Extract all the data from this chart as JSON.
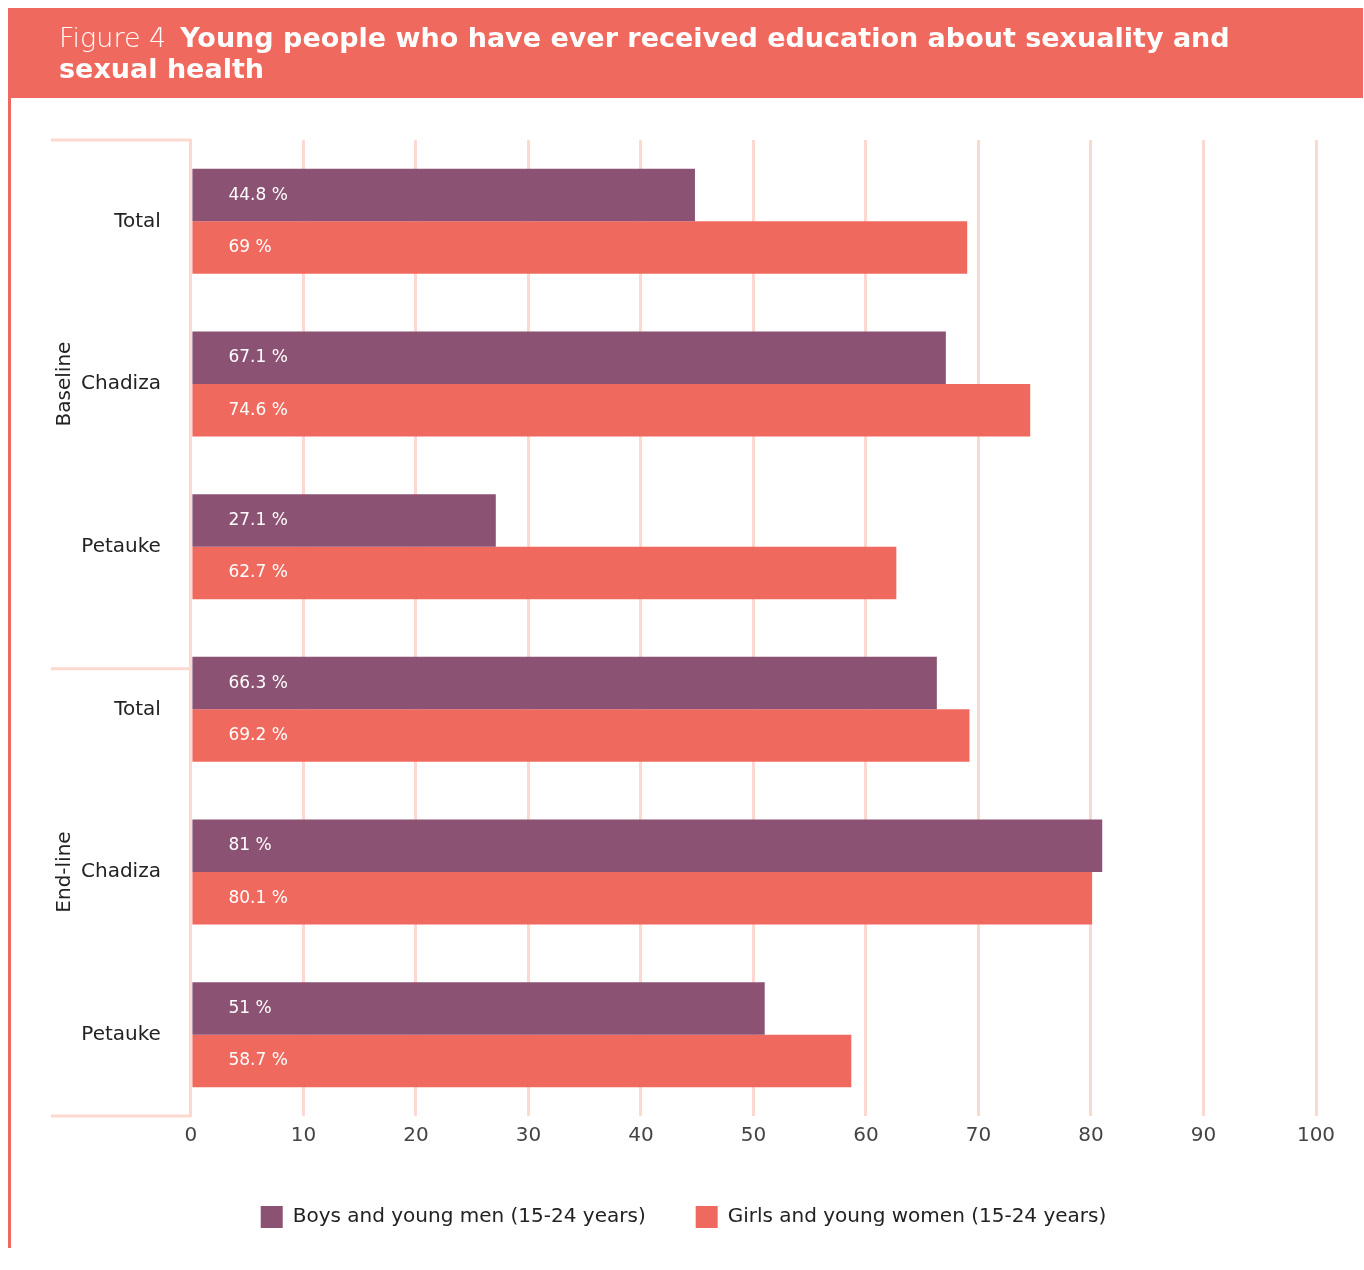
{
  "chart_data": {
    "type": "bar",
    "orientation": "horizontal",
    "title": "Figure 4",
    "subtitle": "Young people who have ever received education about sexuality and sexual health",
    "categories": [
      "Total",
      "Chadiza",
      "Petauke",
      "Total",
      "Chadiza",
      "Petauke"
    ],
    "annotations": [
      "Baseline",
      "End-line"
    ],
    "series": [
      {
        "name": "Boys and young men (15-24 years)",
        "color": "#8b5273",
        "values": [
          44.8,
          67.1,
          27.1,
          66.3,
          81,
          51
        ],
        "value_labels": [
          "44.8 %",
          "67.1 %",
          "27.1 %",
          "66.3 %",
          "81 %",
          "51 %"
        ]
      },
      {
        "name": "Girls and young women (15-24 years)",
        "color": "#f0695f",
        "values": [
          69,
          74.6,
          62.7,
          69.2,
          80.1,
          58.7
        ],
        "value_labels": [
          "69 %",
          "74.6 %",
          "62.7 %",
          "69.2 %",
          "80.1 %",
          "58.7 %"
        ]
      }
    ],
    "xlim": [
      0,
      100
    ],
    "xticks": [
      0,
      10,
      20,
      30,
      40,
      50,
      60,
      70,
      80,
      90,
      100
    ],
    "grid": "x",
    "legend": "bottom"
  }
}
